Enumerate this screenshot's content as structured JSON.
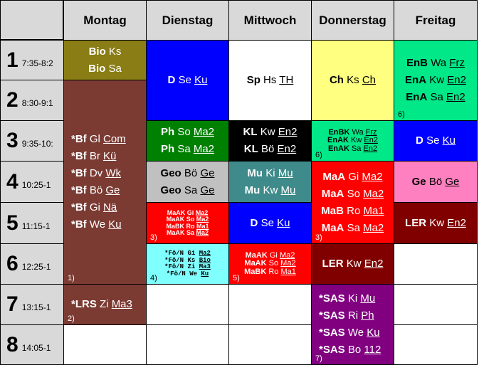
{
  "days": [
    "Montag",
    "Dienstag",
    "Mittwoch",
    "Donnerstag",
    "Freitag"
  ],
  "periods": [
    {
      "num": "1",
      "time": "7:35-8:2"
    },
    {
      "num": "2",
      "time": "8:30-9:1"
    },
    {
      "num": "3",
      "time": "9:35-10:"
    },
    {
      "num": "4",
      "time": "10:25-1"
    },
    {
      "num": "5",
      "time": "11:15-1"
    },
    {
      "num": "6",
      "time": "12:25-1"
    },
    {
      "num": "7",
      "time": "13:15-1"
    },
    {
      "num": "8",
      "time": "14:05-1"
    }
  ],
  "colors": {
    "olive": "#8a7d15",
    "maroon": "#7b3b33",
    "blue": "#0000ff",
    "yellow": "#ffff80",
    "green": "#00e888",
    "darkgreen": "#008000",
    "black": "#000000",
    "gray": "#c0c0c0",
    "teal": "#3f8a8a",
    "red": "#ff0000",
    "pink": "#ff80c0",
    "darkred": "#800000",
    "cyan": "#80ffff",
    "purple": "#800080",
    "white": "#ffffff",
    "header": "#d9d9d9"
  },
  "slots": {
    "mo_bio": {
      "lines": [
        {
          "subject": "Bio",
          "teacher": "Ks",
          "room": ""
        },
        {
          "subject": "Bio",
          "teacher": "Sa",
          "room": ""
        }
      ]
    },
    "mo_bf": {
      "lines": [
        {
          "subject": "*Bf",
          "teacher": "Gl",
          "room": "Com"
        },
        {
          "subject": "*Bf",
          "teacher": "Br",
          "room": "Kü"
        },
        {
          "subject": "*Bf",
          "teacher": "Dv",
          "room": "Wk"
        },
        {
          "subject": "*Bf",
          "teacher": "Bö",
          "room": "Ge"
        },
        {
          "subject": "*Bf",
          "teacher": "Gi",
          "room": "Nä"
        },
        {
          "subject": "*Bf",
          "teacher": "We",
          "room": "Ku"
        }
      ],
      "footnote": "1)"
    },
    "mo_lrs": {
      "lines": [
        {
          "subject": "*LRS",
          "teacher": "Zi",
          "room": "Ma3"
        }
      ],
      "footnote": "2)"
    },
    "di_d": {
      "lines": [
        {
          "subject": "D",
          "teacher": "Se",
          "room": "Ku"
        }
      ]
    },
    "di_ph": {
      "lines": [
        {
          "subject": "Ph",
          "teacher": "So",
          "room": "Ma2"
        },
        {
          "subject": "Ph",
          "teacher": "Sa",
          "room": "Ma2"
        }
      ]
    },
    "di_geo": {
      "lines": [
        {
          "subject": "Geo",
          "teacher": "Bö",
          "room": "Ge"
        },
        {
          "subject": "Geo",
          "teacher": "Sa",
          "room": "Ge"
        }
      ]
    },
    "di_ma": {
      "lines": [
        {
          "subject": "MaAK",
          "teacher": "Gi",
          "room": "Ma2"
        },
        {
          "subject": "MaAK",
          "teacher": "So",
          "room": "Ma2"
        },
        {
          "subject": "MaBK",
          "teacher": "Ro",
          "room": "Ma1"
        },
        {
          "subject": "MaAK",
          "teacher": "Sa",
          "room": "Ma2"
        }
      ],
      "footnote": "3)"
    },
    "di_foe": {
      "lines": [
        {
          "subject": "*Fö/N",
          "teacher": "Gi",
          "room": "Ma2"
        },
        {
          "subject": "*Fö/N",
          "teacher": "Ks",
          "room": "Bio"
        },
        {
          "subject": "*Fö/N",
          "teacher": "Zi",
          "room": "Ma3"
        },
        {
          "subject": "*Fö/N",
          "teacher": "We",
          "room": "Ku"
        }
      ],
      "footnote": "4)"
    },
    "mi_sp": {
      "lines": [
        {
          "subject": "Sp",
          "teacher": "Hs",
          "room": "TH"
        }
      ]
    },
    "mi_kl": {
      "lines": [
        {
          "subject": "KL",
          "teacher": "Kw",
          "room": "En2"
        },
        {
          "subject": "KL",
          "teacher": "Bö",
          "room": "En2"
        }
      ]
    },
    "mi_mu": {
      "lines": [
        {
          "subject": "Mu",
          "teacher": "Ki",
          "room": "Mu"
        },
        {
          "subject": "Mu",
          "teacher": "Kw",
          "room": "Mu"
        }
      ]
    },
    "mi_d": {
      "lines": [
        {
          "subject": "D",
          "teacher": "Se",
          "room": "Ku"
        }
      ]
    },
    "mi_ma": {
      "lines": [
        {
          "subject": "MaAK",
          "teacher": "Gi",
          "room": "Ma2"
        },
        {
          "subject": "MaAK",
          "teacher": "So",
          "room": "Ma2"
        },
        {
          "subject": "MaBK",
          "teacher": "Ro",
          "room": "Ma1"
        }
      ],
      "footnote": "5)"
    },
    "do_ch": {
      "lines": [
        {
          "subject": "Ch",
          "teacher": "Ks",
          "room": "Ch"
        }
      ]
    },
    "do_en": {
      "lines": [
        {
          "subject": "EnBK",
          "teacher": "Wa",
          "room": "Frz"
        },
        {
          "subject": "EnAK",
          "teacher": "Kw",
          "room": "En2"
        },
        {
          "subject": "EnAK",
          "teacher": "Sa",
          "room": "En2"
        }
      ],
      "footnote": "6)"
    },
    "do_ma": {
      "lines": [
        {
          "subject": "MaA",
          "teacher": "Gi",
          "room": "Ma2"
        },
        {
          "subject": "MaA",
          "teacher": "So",
          "room": "Ma2"
        },
        {
          "subject": "MaB",
          "teacher": "Ro",
          "room": "Ma1"
        },
        {
          "subject": "MaA",
          "teacher": "Sa",
          "room": "Ma2"
        }
      ],
      "footnote": "3)"
    },
    "do_ler": {
      "lines": [
        {
          "subject": "LER",
          "teacher": "Kw",
          "room": "En2"
        }
      ]
    },
    "do_sas": {
      "lines": [
        {
          "subject": "*SAS",
          "teacher": "Ki",
          "room": "Mu"
        },
        {
          "subject": "*SAS",
          "teacher": "Ri",
          "room": "Ph"
        },
        {
          "subject": "*SAS",
          "teacher": "We",
          "room": "Ku"
        },
        {
          "subject": "*SAS",
          "teacher": "Bo",
          "room": "112"
        }
      ],
      "footnote": "7)"
    },
    "fr_en": {
      "lines": [
        {
          "subject": "EnB",
          "teacher": "Wa",
          "room": "Frz"
        },
        {
          "subject": "EnA",
          "teacher": "Kw",
          "room": "En2"
        },
        {
          "subject": "EnA",
          "teacher": "Sa",
          "room": "En2"
        }
      ],
      "footnote": "6)"
    },
    "fr_d": {
      "lines": [
        {
          "subject": "D",
          "teacher": "Se",
          "room": "Ku"
        }
      ]
    },
    "fr_ge": {
      "lines": [
        {
          "subject": "Ge",
          "teacher": "Bö",
          "room": "Ge"
        }
      ]
    },
    "fr_ler": {
      "lines": [
        {
          "subject": "LER",
          "teacher": "Kw",
          "room": "En2"
        }
      ]
    }
  }
}
